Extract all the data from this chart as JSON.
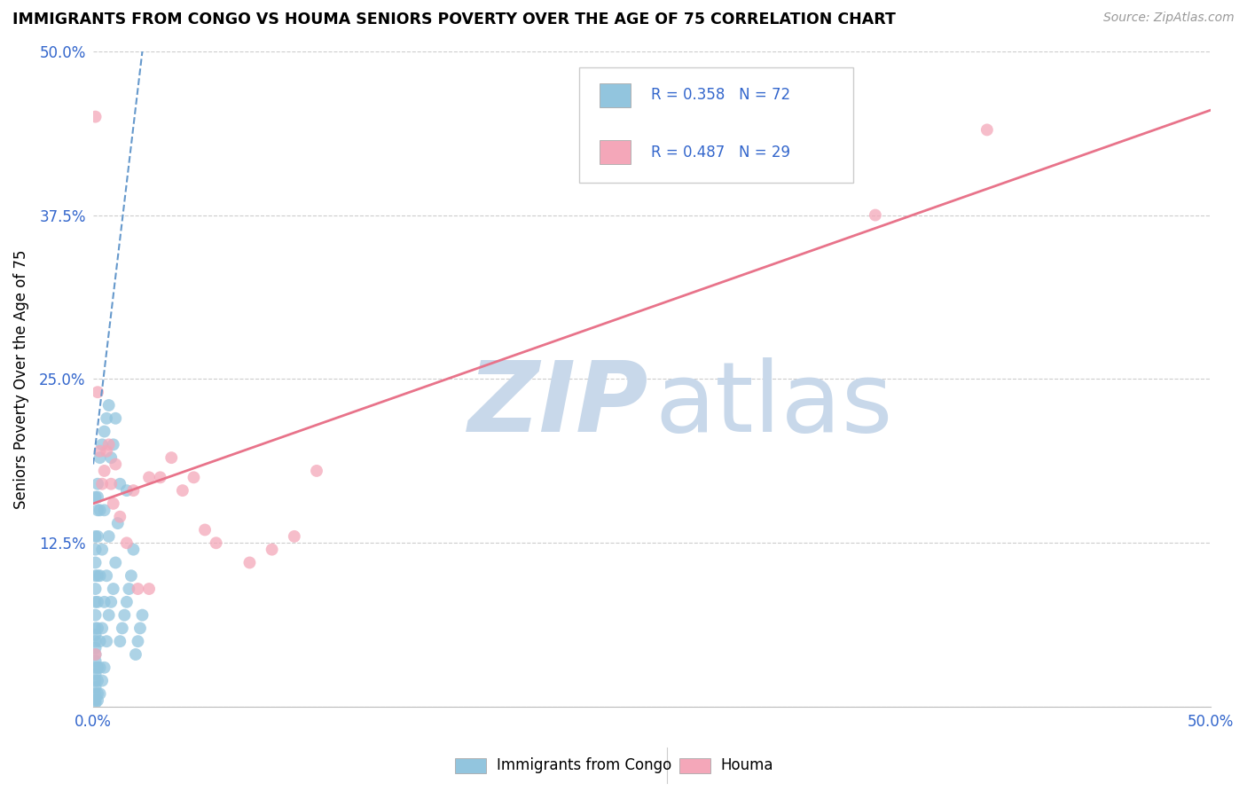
{
  "title": "IMMIGRANTS FROM CONGO VS HOUMA SENIORS POVERTY OVER THE AGE OF 75 CORRELATION CHART",
  "source": "Source: ZipAtlas.com",
  "ylabel": "Seniors Poverty Over the Age of 75",
  "xlim": [
    0.0,
    0.5
  ],
  "ylim": [
    0.0,
    0.5
  ],
  "xticks": [
    0.0,
    0.125,
    0.25,
    0.375,
    0.5
  ],
  "yticks": [
    0.0,
    0.125,
    0.25,
    0.375,
    0.5
  ],
  "xticklabels": [
    "0.0%",
    "",
    "",
    "",
    "50.0%"
  ],
  "yticklabels": [
    "",
    "12.5%",
    "25.0%",
    "37.5%",
    "50.0%"
  ],
  "blue_color": "#92C5DE",
  "pink_color": "#F4A7B9",
  "trend_blue_color": "#6699CC",
  "trend_pink_color": "#E8738A",
  "watermark_zip_color": "#C8D8EA",
  "watermark_atlas_color": "#C8D8EA",
  "legend_label1": "Immigrants from Congo",
  "legend_label2": "Houma",
  "blue_x": [
    0.001,
    0.001,
    0.001,
    0.001,
    0.001,
    0.001,
    0.001,
    0.001,
    0.001,
    0.001,
    0.001,
    0.001,
    0.001,
    0.001,
    0.001,
    0.001,
    0.001,
    0.002,
    0.002,
    0.002,
    0.002,
    0.002,
    0.002,
    0.002,
    0.002,
    0.002,
    0.002,
    0.003,
    0.003,
    0.003,
    0.003,
    0.003,
    0.004,
    0.004,
    0.004,
    0.004,
    0.005,
    0.005,
    0.005,
    0.005,
    0.006,
    0.006,
    0.006,
    0.007,
    0.007,
    0.007,
    0.008,
    0.008,
    0.009,
    0.009,
    0.01,
    0.01,
    0.011,
    0.012,
    0.012,
    0.013,
    0.014,
    0.015,
    0.015,
    0.016,
    0.017,
    0.018,
    0.019,
    0.02,
    0.021,
    0.022,
    0.003,
    0.002,
    0.001,
    0.001,
    0.001,
    0.001
  ],
  "blue_y": [
    0.005,
    0.01,
    0.015,
    0.02,
    0.025,
    0.03,
    0.035,
    0.04,
    0.045,
    0.05,
    0.055,
    0.06,
    0.07,
    0.08,
    0.09,
    0.1,
    0.11,
    0.005,
    0.01,
    0.02,
    0.03,
    0.06,
    0.08,
    0.1,
    0.13,
    0.15,
    0.17,
    0.01,
    0.05,
    0.1,
    0.15,
    0.19,
    0.02,
    0.06,
    0.12,
    0.2,
    0.03,
    0.08,
    0.15,
    0.21,
    0.05,
    0.1,
    0.22,
    0.07,
    0.13,
    0.23,
    0.08,
    0.19,
    0.09,
    0.2,
    0.11,
    0.22,
    0.14,
    0.05,
    0.17,
    0.06,
    0.07,
    0.08,
    0.165,
    0.09,
    0.1,
    0.12,
    0.04,
    0.05,
    0.06,
    0.07,
    0.03,
    0.16,
    0.12,
    0.13,
    0.16,
    0.003
  ],
  "pink_x": [
    0.001,
    0.002,
    0.003,
    0.004,
    0.005,
    0.006,
    0.007,
    0.008,
    0.009,
    0.01,
    0.012,
    0.015,
    0.018,
    0.02,
    0.025,
    0.03,
    0.035,
    0.04,
    0.045,
    0.05,
    0.055,
    0.07,
    0.08,
    0.09,
    0.1,
    0.025,
    0.35,
    0.4,
    0.001
  ],
  "pink_y": [
    0.45,
    0.24,
    0.195,
    0.17,
    0.18,
    0.195,
    0.2,
    0.17,
    0.155,
    0.185,
    0.145,
    0.125,
    0.165,
    0.09,
    0.09,
    0.175,
    0.19,
    0.165,
    0.175,
    0.135,
    0.125,
    0.11,
    0.12,
    0.13,
    0.18,
    0.175,
    0.375,
    0.44,
    0.04
  ],
  "blue_trend_x": [
    0.0,
    0.022
  ],
  "blue_trend_y": [
    0.185,
    0.5
  ],
  "pink_trend_x": [
    0.0,
    0.5
  ],
  "pink_trend_y": [
    0.155,
    0.455
  ]
}
